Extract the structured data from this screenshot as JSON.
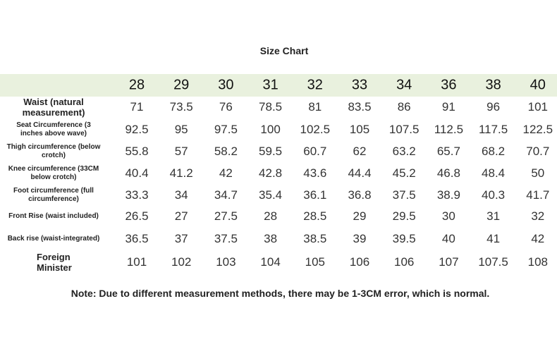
{
  "title": "Size Chart",
  "table": {
    "header": [
      "28",
      "29",
      "30",
      "31",
      "32",
      "33",
      "34",
      "36",
      "38",
      "40"
    ],
    "rows": [
      {
        "label": "Waist (natural measurement)",
        "values": [
          "71",
          "73.5",
          "76",
          "78.5",
          "81",
          "83.5",
          "86",
          "91",
          "96",
          "101"
        ]
      },
      {
        "label": "Seat Circumference (3 inches above wave)",
        "values": [
          "92.5",
          "95",
          "97.5",
          "100",
          "102.5",
          "105",
          "107.5",
          "112.5",
          "117.5",
          "122.5"
        ]
      },
      {
        "label": "Thigh circumference (below crotch)",
        "values": [
          "55.8",
          "57",
          "58.2",
          "59.5",
          "60.7",
          "62",
          "63.2",
          "65.7",
          "68.2",
          "70.7"
        ]
      },
      {
        "label": "Knee circumference (33CM below crotch)",
        "values": [
          "40.4",
          "41.2",
          "42",
          "42.8",
          "43.6",
          "44.4",
          "45.2",
          "46.8",
          "48.4",
          "50"
        ]
      },
      {
        "label": "Foot circumference (full circumference)",
        "values": [
          "33.3",
          "34",
          "34.7",
          "35.4",
          "36.1",
          "36.8",
          "37.5",
          "38.9",
          "40.3",
          "41.7"
        ]
      },
      {
        "label": "Front Rise (waist included)",
        "values": [
          "26.5",
          "27",
          "27.5",
          "28",
          "28.5",
          "29",
          "29.5",
          "30",
          "31",
          "32"
        ]
      },
      {
        "label": "Back rise (waist-integrated)",
        "values": [
          "36.5",
          "37",
          "37.5",
          "38",
          "38.5",
          "39",
          "39.5",
          "40",
          "41",
          "42"
        ]
      },
      {
        "label": "Foreign Minister",
        "values": [
          "101",
          "102",
          "103",
          "104",
          "105",
          "106",
          "106",
          "107",
          "107.5",
          "108"
        ]
      }
    ]
  },
  "note": "Note: Due to different measurement methods, there may be 1-3CM error, which is normal."
}
